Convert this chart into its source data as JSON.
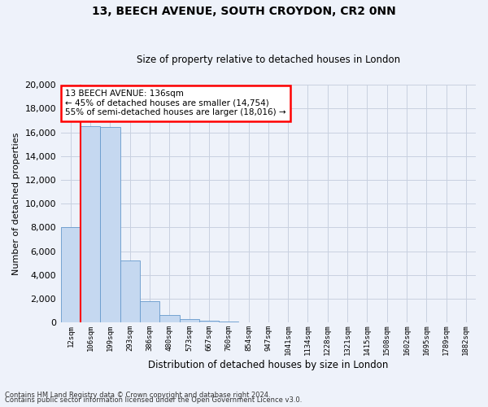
{
  "title1": "13, BEECH AVENUE, SOUTH CROYDON, CR2 0NN",
  "title2": "Size of property relative to detached houses in London",
  "xlabel": "Distribution of detached houses by size in London",
  "ylabel": "Number of detached properties",
  "bin_labels": [
    "12sqm",
    "106sqm",
    "199sqm",
    "293sqm",
    "386sqm",
    "480sqm",
    "573sqm",
    "667sqm",
    "760sqm",
    "854sqm",
    "947sqm",
    "1041sqm",
    "1134sqm",
    "1228sqm",
    "1321sqm",
    "1415sqm",
    "1508sqm",
    "1602sqm",
    "1695sqm",
    "1789sqm",
    "1882sqm"
  ],
  "bar_values": [
    8050,
    16500,
    16450,
    5200,
    1800,
    620,
    280,
    120,
    65,
    35,
    20,
    12,
    8,
    5,
    4,
    3,
    2,
    2,
    1,
    1,
    1
  ],
  "bar_color": "#c5d8f0",
  "bar_edge_color": "#6699cc",
  "grid_color": "#c8d0e0",
  "vline_x": 0.5,
  "vline_color": "red",
  "annotation_text": "13 BEECH AVENUE: 136sqm\n← 45% of detached houses are smaller (14,754)\n55% of semi-detached houses are larger (18,016) →",
  "annotation_box_color": "white",
  "annotation_box_edge": "red",
  "ylim": [
    0,
    20000
  ],
  "yticks": [
    0,
    2000,
    4000,
    6000,
    8000,
    10000,
    12000,
    14000,
    16000,
    18000,
    20000
  ],
  "footer1": "Contains HM Land Registry data © Crown copyright and database right 2024.",
  "footer2": "Contains public sector information licensed under the Open Government Licence v3.0.",
  "bg_color": "#eef2fa"
}
